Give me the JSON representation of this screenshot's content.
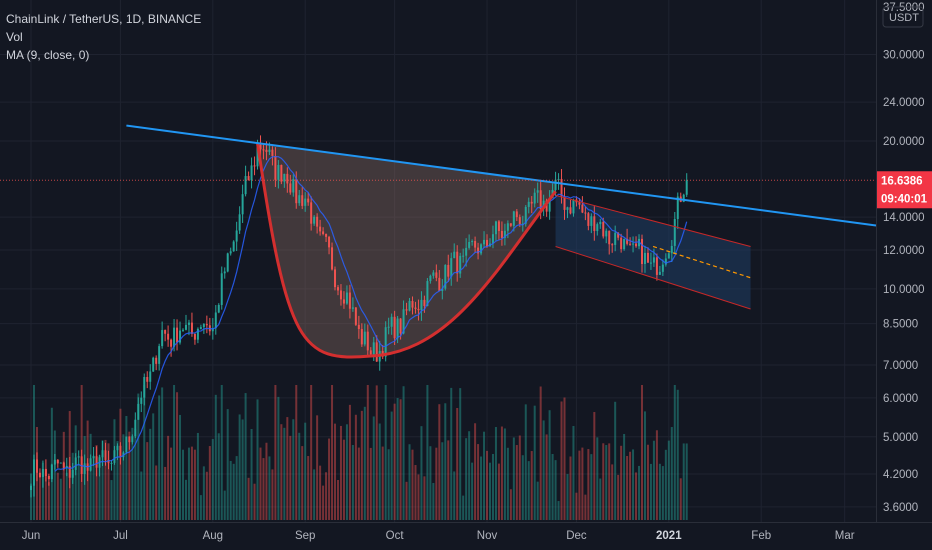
{
  "legend": {
    "symbol": "ChainLink / TetherUS, 1D, BINANCE",
    "vol": "Vol",
    "ma": "MA (9, close, 0)"
  },
  "price_axis": {
    "currency": "USDT",
    "top_partial": "37.5000",
    "ticks": [
      "30.0000",
      "24.0000",
      "20.0000",
      "14.0000",
      "12.0000",
      "10.0000",
      "8.5000",
      "7.0000",
      "6.0000",
      "5.0000",
      "4.2000",
      "3.6000"
    ]
  },
  "time_axis": {
    "labels": [
      "Jun",
      "Jul",
      "Aug",
      "Sep",
      "Oct",
      "Nov",
      "Dec",
      "2021",
      "Feb",
      "Mar"
    ]
  },
  "last_price": {
    "price": "16.6386",
    "countdown": "09:40:01"
  },
  "colors": {
    "background": "#131722",
    "up": "#26a69a",
    "down": "#ef5350",
    "ma": "#2962ff",
    "resistance": "#2196f3",
    "cup": "#d32f2f",
    "cup_fill": "#8d6e63",
    "channel_fill": "#1e3a5f",
    "orange_dash": "#ff9800"
  },
  "chart_data": {
    "type": "candlestick",
    "symbol": "ChainLink / TetherUS",
    "interval": "1D",
    "exchange": "BINANCE",
    "scale": "log",
    "ylim": [
      3.3,
      37.5
    ],
    "indicators": [
      "Vol",
      "MA (9, close, 0)"
    ],
    "x_labels": [
      "Jun",
      "Jul",
      "Aug",
      "Sep",
      "Oct",
      "Nov",
      "Dec",
      "2021",
      "Feb",
      "Mar"
    ],
    "key_points": [
      {
        "x": "2020-06-01",
        "y": 4.2
      },
      {
        "x": "2020-07-01",
        "y": 4.5
      },
      {
        "x": "2020-07-15",
        "y": 8.0
      },
      {
        "x": "2020-08-01",
        "y": 8.5
      },
      {
        "x": "2020-08-16",
        "y": 19.8
      },
      {
        "x": "2020-09-01",
        "y": 15.0
      },
      {
        "x": "2020-09-23",
        "y": 7.3
      },
      {
        "x": "2020-10-15",
        "y": 10.5
      },
      {
        "x": "2020-11-24",
        "y": 15.8
      },
      {
        "x": "2020-12-15",
        "y": 12.5
      },
      {
        "x": "2020-12-29",
        "y": 11.0
      },
      {
        "x": "2021-01-07",
        "y": 16.6386
      }
    ],
    "last_close": 16.6386,
    "annotations": [
      {
        "type": "trendline",
        "name": "resistance",
        "from": {
          "x": "2020-07-03",
          "y": 21.5
        },
        "to": {
          "x": "2021-03-10",
          "y": 13.5
        }
      },
      {
        "type": "cup",
        "from": {
          "x": "2020-08-16",
          "y": 19.8
        },
        "bottom": {
          "x": "2020-09-23",
          "y": 7.3
        },
        "to": {
          "x": "2020-11-24",
          "y": 15.8
        }
      },
      {
        "type": "channel",
        "from_date": "2020-11-24",
        "to_date": "2021-01-15"
      }
    ]
  }
}
